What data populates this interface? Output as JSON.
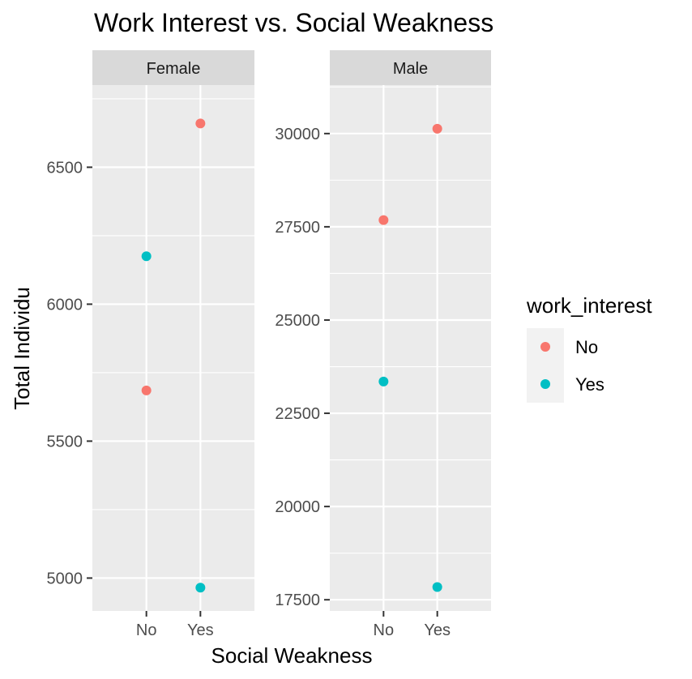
{
  "chart_data": {
    "type": "scatter",
    "title": "Work Interest vs. Social Weakness",
    "xlabel": "Social Weakness",
    "ylabel": "Total Individu",
    "categories": [
      "No",
      "Yes"
    ],
    "grid": true,
    "legend": {
      "title": "work_interest",
      "placement": "right",
      "entries": [
        {
          "label": "No",
          "color": "#F8766D"
        },
        {
          "label": "Yes",
          "color": "#00BFC4"
        }
      ]
    },
    "facets": [
      {
        "label": "Female",
        "ylim": [
          4880,
          6800
        ],
        "yticks": [
          5000,
          5500,
          6000,
          6500
        ],
        "ytick_labels": [
          "5000",
          "5500",
          "6000",
          "6500"
        ],
        "series": [
          {
            "name": "No",
            "color": "#F8766D",
            "values": [
              5685,
              6660
            ]
          },
          {
            "name": "Yes",
            "color": "#00BFC4",
            "values": [
              6175,
              4965
            ]
          }
        ]
      },
      {
        "label": "Male",
        "ylim": [
          17200,
          31300
        ],
        "yticks": [
          17500,
          20000,
          22500,
          25000,
          27500,
          30000
        ],
        "ytick_labels": [
          "17500",
          "20000",
          "22500",
          "25000",
          "27500",
          "30000"
        ],
        "series": [
          {
            "name": "No",
            "color": "#F8766D",
            "values": [
              27680,
              30130
            ]
          },
          {
            "name": "Yes",
            "color": "#00BFC4",
            "values": [
              23350,
              17840
            ]
          }
        ]
      }
    ]
  },
  "colors": {
    "panel_bg": "#EBEBEB",
    "strip_bg": "#D9D9D9",
    "grid": "#FFFFFF"
  }
}
